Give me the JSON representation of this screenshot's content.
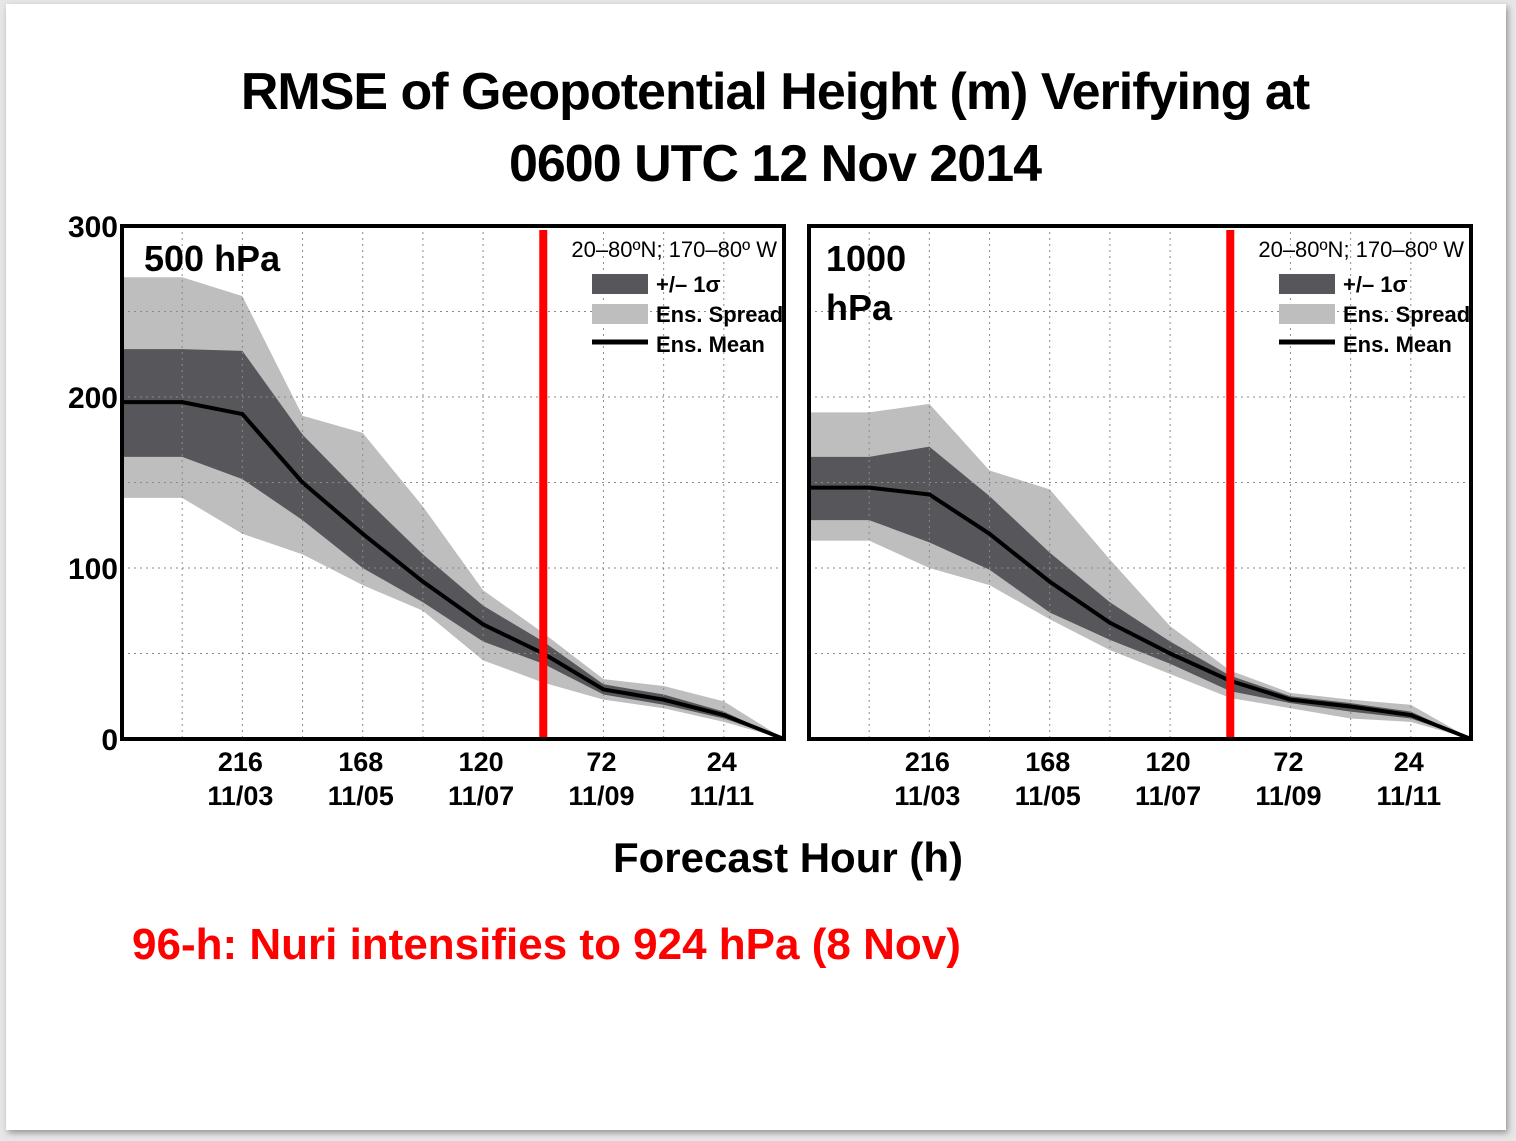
{
  "title_line1": "RMSE of Geopotential Height (m) Verifying at",
  "title_line2": "0600 UTC 12 Nov 2014",
  "xlabel": "Forecast Hour (h)",
  "note": "96-h:  Nuri intensifies to 924 hPa (8 Nov)",
  "colors": {
    "spread": "#bebebf",
    "sigma": "#57575b",
    "mean": "#000000",
    "marker": "#ff0000"
  },
  "chart_data": [
    {
      "type": "area",
      "title": "500 hPa",
      "region": "20–80ºN; 170–80º W",
      "ylim": [
        0,
        300
      ],
      "xlim": [
        264,
        0
      ],
      "yticks": [
        0,
        100,
        200,
        300
      ],
      "xticks": [
        {
          "value": 216,
          "hour": "216",
          "date": "11/03"
        },
        {
          "value": 168,
          "hour": "168",
          "date": "11/05"
        },
        {
          "value": 120,
          "hour": "120",
          "date": "11/07"
        },
        {
          "value": 72,
          "hour": "72",
          "date": "11/09"
        },
        {
          "value": 24,
          "hour": "24",
          "date": "11/11"
        }
      ],
      "grid": true,
      "legend": [
        {
          "label": "+/– 1σ",
          "kind": "sigma"
        },
        {
          "label": "Ens. Spread",
          "kind": "spread"
        },
        {
          "label": "Ens. Mean",
          "kind": "mean"
        }
      ],
      "marker_x": 96,
      "x": [
        240,
        216,
        192,
        168,
        144,
        120,
        96,
        72,
        48,
        24,
        0
      ],
      "series": [
        {
          "name": "Ens. Mean",
          "values": [
            197,
            190,
            150,
            120,
            92,
            67,
            50,
            29,
            23,
            14,
            0
          ]
        },
        {
          "name": "+/– 1σ upper",
          "values": [
            228,
            227,
            178,
            142,
            108,
            78,
            57,
            32,
            26,
            16,
            0
          ]
        },
        {
          "name": "+/– 1σ lower",
          "values": [
            165,
            152,
            128,
            100,
            80,
            57,
            44,
            26,
            20,
            12,
            0
          ]
        },
        {
          "name": "Ens. Spread upper",
          "values": [
            270,
            259,
            189,
            179,
            136,
            87,
            62,
            35,
            31,
            22,
            0
          ]
        },
        {
          "name": "Ens. Spread lower",
          "values": [
            141,
            120,
            108,
            90,
            75,
            46,
            33,
            23,
            18,
            10,
            0
          ]
        }
      ]
    },
    {
      "type": "area",
      "title": "1000 hPa",
      "title_line1": "1000",
      "title_line2": "hPa",
      "region": "20–80ºN; 170–80º W",
      "ylim": [
        0,
        300
      ],
      "xlim": [
        264,
        0
      ],
      "xticks": [
        {
          "value": 216,
          "hour": "216",
          "date": "11/03"
        },
        {
          "value": 168,
          "hour": "168",
          "date": "11/05"
        },
        {
          "value": 120,
          "hour": "120",
          "date": "11/07"
        },
        {
          "value": 72,
          "hour": "72",
          "date": "11/09"
        },
        {
          "value": 24,
          "hour": "24",
          "date": "11/11"
        }
      ],
      "grid": true,
      "legend": [
        {
          "label": "+/– 1σ",
          "kind": "sigma"
        },
        {
          "label": "Ens. Spread",
          "kind": "spread"
        },
        {
          "label": "Ens. Mean",
          "kind": "mean"
        }
      ],
      "marker_x": 96,
      "x": [
        240,
        216,
        192,
        168,
        144,
        120,
        96,
        72,
        48,
        24,
        0
      ],
      "series": [
        {
          "name": "Ens. Mean",
          "values": [
            147,
            143,
            120,
            92,
            68,
            50,
            34,
            23,
            19,
            14,
            0
          ]
        },
        {
          "name": "+/– 1σ upper",
          "values": [
            165,
            171,
            142,
            109,
            80,
            57,
            37,
            25,
            21,
            16,
            0
          ]
        },
        {
          "name": "+/– 1σ lower",
          "values": [
            128,
            115,
            99,
            74,
            58,
            44,
            28,
            21,
            16,
            12,
            0
          ]
        },
        {
          "name": "Ens. Spread upper",
          "values": [
            191,
            196,
            157,
            146,
            105,
            66,
            40,
            27,
            23,
            20,
            0
          ]
        },
        {
          "name": "Ens. Spread lower",
          "values": [
            116,
            100,
            90,
            70,
            52,
            38,
            24,
            18,
            12,
            10,
            0
          ]
        }
      ]
    }
  ]
}
